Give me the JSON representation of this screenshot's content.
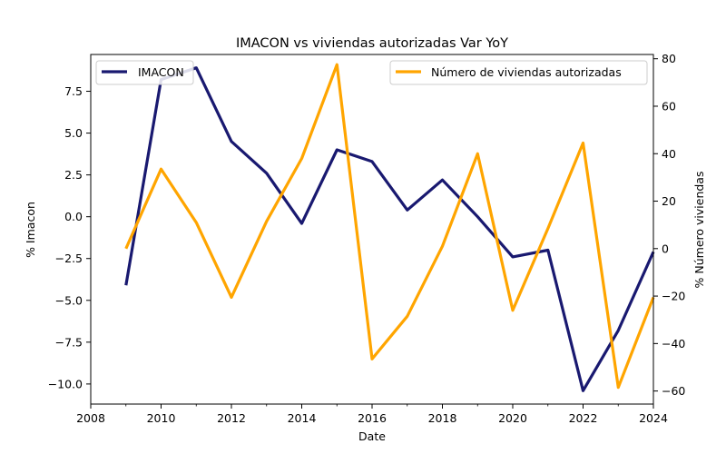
{
  "chart_data": {
    "type": "line",
    "title": "IMACON vs viviendas autorizadas Var YoY",
    "xlabel": "Date",
    "ylabel_left": "% Imacon",
    "ylabel_right": "% Número viviendas",
    "xlim": [
      2008,
      2024
    ],
    "ylim_left": [
      -11.2,
      9.7
    ],
    "ylim_right": [
      -65.5,
      81.8
    ],
    "x_ticks": [
      2008,
      2010,
      2012,
      2014,
      2016,
      2018,
      2020,
      2022,
      2024
    ],
    "y_ticks_left": [
      -10.0,
      -7.5,
      -5.0,
      -2.5,
      0.0,
      2.5,
      5.0,
      7.5
    ],
    "y_ticks_left_labels": [
      "−10.0",
      "−7.5",
      "−5.0",
      "−2.5",
      "0.0",
      "2.5",
      "5.0",
      "7.5"
    ],
    "y_ticks_right": [
      -60,
      -40,
      -20,
      0,
      20,
      40,
      60,
      80
    ],
    "y_ticks_right_labels": [
      "−60",
      "−40",
      "−20",
      "0",
      "20",
      "40",
      "60",
      "80"
    ],
    "grid": false,
    "series": [
      {
        "name": "IMACON",
        "axis": "left",
        "color": "#191970",
        "legend_position": "upper-left",
        "x": [
          2009,
          2010,
          2011,
          2012,
          2013,
          2014,
          2015,
          2016,
          2017,
          2018,
          2019,
          2020,
          2021,
          2022,
          2023,
          2024
        ],
        "values": [
          -4.1,
          8.2,
          8.9,
          4.5,
          2.6,
          -0.4,
          4.0,
          3.3,
          0.4,
          2.2,
          0.0,
          -2.4,
          -2.0,
          -10.4,
          -6.8,
          -2.1
        ]
      },
      {
        "name": "Número de viviendas autorizadas",
        "axis": "right",
        "color": "#FFA500",
        "legend_position": "upper-right",
        "x": [
          2009,
          2010,
          2011,
          2012,
          2013,
          2014,
          2015,
          2016,
          2017,
          2018,
          2019,
          2020,
          2021,
          2022,
          2023,
          2024
        ],
        "values": [
          0.0,
          33.5,
          11.0,
          -20.5,
          11.5,
          38.0,
          77.5,
          -46.5,
          -28.5,
          1.0,
          40.0,
          -26.0,
          8.5,
          44.5,
          -58.5,
          -20.5
        ]
      }
    ]
  }
}
